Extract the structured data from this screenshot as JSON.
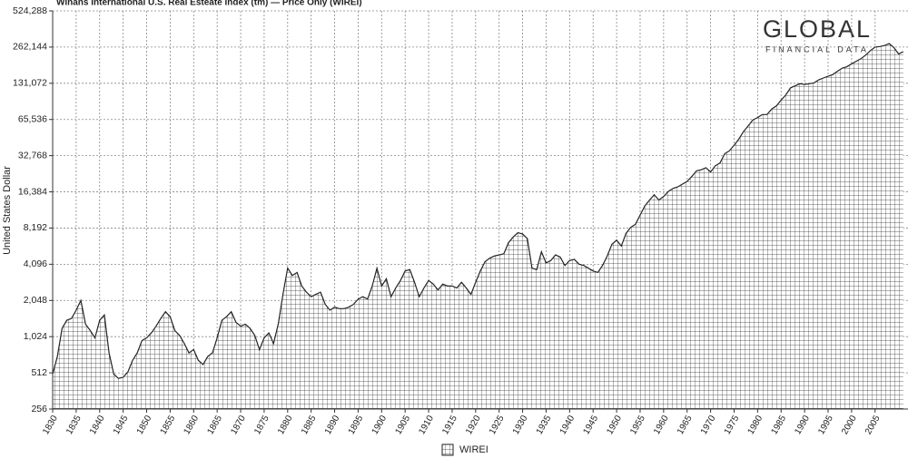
{
  "chart_data": {
    "type": "area",
    "title": "Winans International U.S. Real Esteate Index (tm) — Price Only (WIREI)",
    "y_label": "United States Dollar",
    "log_scale": true,
    "grid": true,
    "legend_position": "bottom",
    "xlim": [
      1830,
      2012
    ],
    "ylim": [
      256,
      524288
    ],
    "xticks": [
      1830,
      1835,
      1840,
      1845,
      1850,
      1855,
      1860,
      1865,
      1870,
      1875,
      1880,
      1885,
      1890,
      1895,
      1900,
      1905,
      1910,
      1915,
      1920,
      1925,
      1930,
      1935,
      1940,
      1945,
      1950,
      1955,
      1960,
      1965,
      1970,
      1975,
      1980,
      1985,
      1990,
      1995,
      2000,
      2005
    ],
    "yticks": [
      256,
      512,
      {
        "value": 1024,
        "label": "1,024"
      },
      {
        "value": 2048,
        "label": "2,048"
      },
      {
        "value": 4096,
        "label": "4,096"
      },
      {
        "value": 8192,
        "label": "8,192"
      },
      {
        "value": 16384,
        "label": "16,384"
      },
      {
        "value": 32768,
        "label": "32,768"
      },
      {
        "value": 65536,
        "label": "65,536"
      },
      {
        "value": 131072,
        "label": "131,072"
      },
      {
        "value": 262144,
        "label": "262,144"
      },
      {
        "value": 524288,
        "label": "524,288"
      }
    ],
    "x": [
      1830,
      1831,
      1832,
      1833,
      1834,
      1835,
      1836,
      1837,
      1838,
      1839,
      1840,
      1841,
      1842,
      1843,
      1844,
      1845,
      1846,
      1847,
      1848,
      1849,
      1850,
      1851,
      1852,
      1853,
      1854,
      1855,
      1856,
      1857,
      1858,
      1859,
      1860,
      1861,
      1862,
      1863,
      1864,
      1865,
      1866,
      1867,
      1868,
      1869,
      1870,
      1871,
      1872,
      1873,
      1874,
      1875,
      1876,
      1877,
      1878,
      1879,
      1880,
      1881,
      1882,
      1883,
      1884,
      1885,
      1886,
      1887,
      1888,
      1889,
      1890,
      1891,
      1892,
      1893,
      1894,
      1895,
      1896,
      1897,
      1898,
      1899,
      1900,
      1901,
      1902,
      1903,
      1904,
      1905,
      1906,
      1907,
      1908,
      1909,
      1910,
      1911,
      1912,
      1913,
      1914,
      1915,
      1916,
      1917,
      1918,
      1919,
      1920,
      1921,
      1922,
      1923,
      1924,
      1925,
      1926,
      1927,
      1928,
      1929,
      1930,
      1931,
      1932,
      1933,
      1934,
      1935,
      1936,
      1937,
      1938,
      1939,
      1940,
      1941,
      1942,
      1943,
      1944,
      1945,
      1946,
      1947,
      1948,
      1949,
      1950,
      1951,
      1952,
      1953,
      1954,
      1955,
      1956,
      1957,
      1958,
      1959,
      1960,
      1961,
      1962,
      1963,
      1964,
      1965,
      1966,
      1967,
      1968,
      1969,
      1970,
      1971,
      1972,
      1973,
      1974,
      1975,
      1976,
      1977,
      1978,
      1979,
      1980,
      1981,
      1982,
      1983,
      1984,
      1985,
      1986,
      1987,
      1988,
      1989,
      1990,
      1991,
      1992,
      1993,
      1994,
      1995,
      1996,
      1997,
      1998,
      1999,
      2000,
      2001,
      2002,
      2003,
      2004,
      2005,
      2006,
      2007,
      2008,
      2009,
      2010,
      2011
    ],
    "series": [
      {
        "name": "WIREI",
        "color": "#222222",
        "values": [
          500,
          700,
          1200,
          1400,
          1450,
          1700,
          2050,
          1300,
          1150,
          1000,
          1400,
          1550,
          750,
          500,
          460,
          470,
          520,
          650,
          750,
          950,
          1000,
          1100,
          1250,
          1450,
          1650,
          1500,
          1150,
          1050,
          900,
          750,
          800,
          650,
          600,
          700,
          750,
          1000,
          1400,
          1500,
          1650,
          1350,
          1250,
          1300,
          1200,
          1050,
          800,
          1000,
          1100,
          900,
          1300,
          2300,
          3800,
          3300,
          3500,
          2700,
          2400,
          2200,
          2300,
          2400,
          1900,
          1700,
          1800,
          1750,
          1750,
          1800,
          1900,
          2100,
          2200,
          2100,
          2700,
          3800,
          2700,
          3100,
          2200,
          2600,
          3000,
          3600,
          3700,
          2900,
          2200,
          2600,
          3000,
          2800,
          2500,
          2800,
          2700,
          2700,
          2600,
          2900,
          2600,
          2300,
          2900,
          3600,
          4300,
          4600,
          4800,
          4900,
          5000,
          6200,
          6900,
          7500,
          7300,
          6700,
          3800,
          3700,
          5200,
          4200,
          4400,
          4900,
          4700,
          4000,
          4400,
          4500,
          4100,
          4000,
          3800,
          3600,
          3500,
          4000,
          4800,
          6000,
          6500,
          5800,
          7400,
          8300,
          8800,
          10500,
          12500,
          14000,
          15500,
          14000,
          15000,
          16500,
          17500,
          18000,
          19000,
          20000,
          22000,
          24500,
          25000,
          26000,
          24000,
          27000,
          28500,
          34000,
          36000,
          40000,
          45000,
          52000,
          58000,
          65000,
          68000,
          72000,
          72000,
          80000,
          85000,
          95000,
          105000,
          120000,
          125000,
          130000,
          128000,
          130000,
          132000,
          140000,
          145000,
          150000,
          155000,
          165000,
          175000,
          180000,
          190000,
          200000,
          210000,
          225000,
          245000,
          262000,
          265000,
          270000,
          280000,
          260000,
          230000,
          240000
        ]
      }
    ]
  },
  "logo": {
    "name": "GLOBAL",
    "tagline": "FINANCIAL DATA"
  }
}
